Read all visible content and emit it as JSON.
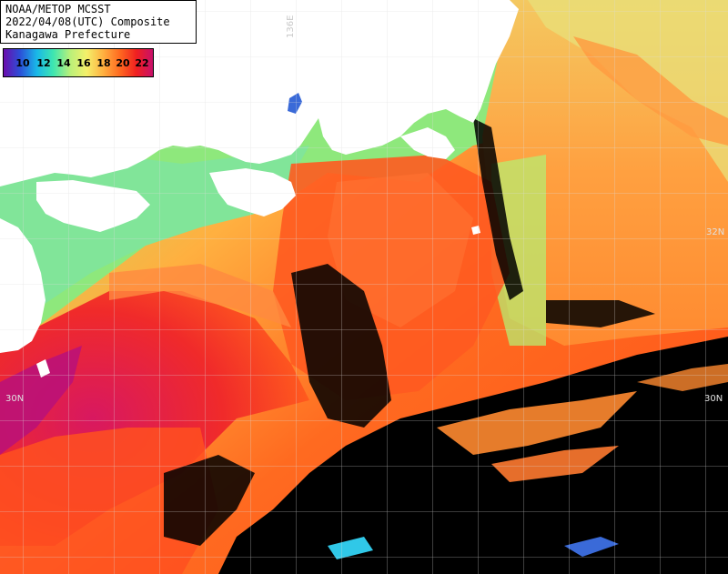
{
  "title": {
    "line1": "NOAA/METOP MCSST",
    "line2": "2022/04/08(UTC) Composite",
    "line3": "Kanagawa Prefecture"
  },
  "legend": {
    "ticks": [
      "10",
      "12",
      "14",
      "16",
      "18",
      "20",
      "22"
    ],
    "gradient_stops": [
      "#6a0dad",
      "#2b50d8",
      "#19b8e8",
      "#3ee6b0",
      "#b8f07a",
      "#f4f06a",
      "#ffb040",
      "#ff6a20",
      "#f02020",
      "#c8106a"
    ]
  },
  "grid_labels": {
    "lon_label": "136E",
    "lat_left": "30N",
    "lat_right": "30N",
    "lat_upper_right": "32N"
  },
  "colors": {
    "land": "#ffffff",
    "cloud": "#000000",
    "cool_water": "#8ff07a",
    "mid_water": "#ffa040",
    "warm_water": "#ff5a1e",
    "kuroshio": "#e02040"
  }
}
